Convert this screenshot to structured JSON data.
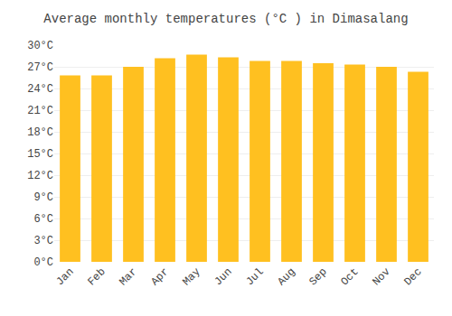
{
  "chart_data": {
    "type": "bar",
    "title": "Average monthly temperatures (°C ) in Dimasalang",
    "categories": [
      "Jan",
      "Feb",
      "Mar",
      "Apr",
      "May",
      "Jun",
      "Jul",
      "Aug",
      "Sep",
      "Oct",
      "Nov",
      "Dec"
    ],
    "values": [
      25.8,
      25.8,
      27.0,
      28.2,
      28.7,
      28.3,
      27.8,
      27.8,
      27.5,
      27.3,
      27.0,
      26.3
    ],
    "color": "#FFC020",
    "ylim": [
      0,
      30
    ],
    "yticks": [
      {
        "value": 0,
        "label": "0°C"
      },
      {
        "value": 3,
        "label": "3°C"
      },
      {
        "value": 6,
        "label": "6°C"
      },
      {
        "value": 9,
        "label": "9°C"
      },
      {
        "value": 12,
        "label": "12°C"
      },
      {
        "value": 15,
        "label": "15°C"
      },
      {
        "value": 18,
        "label": "18°C"
      },
      {
        "value": 21,
        "label": "21°C"
      },
      {
        "value": 24,
        "label": "24°C"
      },
      {
        "value": 27,
        "label": "27°C"
      },
      {
        "value": 30,
        "label": "30°C"
      }
    ],
    "grid": true
  }
}
